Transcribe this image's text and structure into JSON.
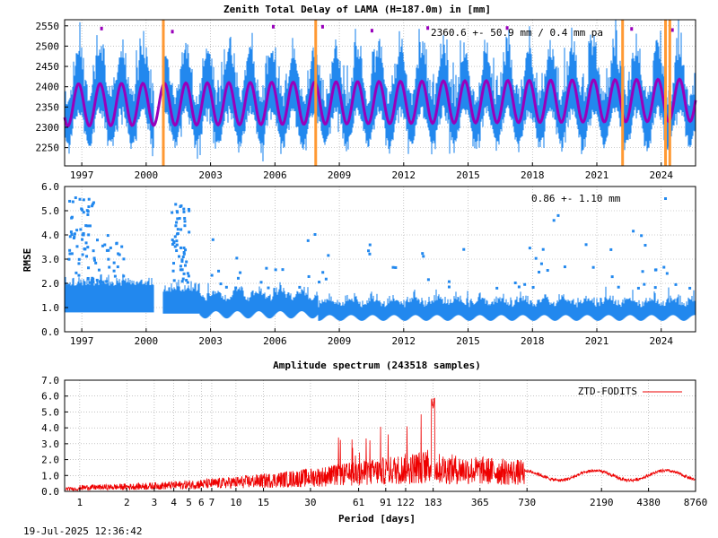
{
  "chart_data": [
    {
      "type": "scatter",
      "title": "Zenith Total Delay of LAMA (H=187.0m) in [mm]",
      "annotation": "2360.6 +-  50.9 mm /  0.4 mm pa",
      "x_ticks": [
        "1997",
        "2000",
        "2003",
        "2006",
        "2009",
        "2012",
        "2015",
        "2018",
        "2021",
        "2024"
      ],
      "x_range": [
        1996.2,
        2025.6
      ],
      "y_ticks": [
        "2250",
        "2300",
        "2350",
        "2400",
        "2450",
        "2500",
        "2550"
      ],
      "ylim": [
        2205,
        2565
      ],
      "mean": 2360.6,
      "std": 50.9,
      "trend_mm_per_year": 0.4,
      "seasonal_amplitude": 52,
      "vertical_markers": [
        2000.8,
        2007.9,
        2022.2,
        2024.2,
        2024.4
      ],
      "colors": {
        "data": "#2288ee",
        "fit": "#9900bb",
        "marker": "#ff9933"
      }
    },
    {
      "type": "scatter",
      "ylabel": "RMSE",
      "annotation": "0.86 +-  1.10 mm",
      "x_ticks": [
        "1997",
        "2000",
        "2003",
        "2006",
        "2009",
        "2012",
        "2015",
        "2018",
        "2021",
        "2024"
      ],
      "x_range": [
        1996.2,
        2025.6
      ],
      "y_ticks": [
        "0.0",
        "1.0",
        "2.0",
        "3.0",
        "4.0",
        "5.0",
        "6.0"
      ],
      "ylim": [
        0,
        6
      ],
      "colors": {
        "data": "#2288ee"
      }
    },
    {
      "type": "line",
      "title": "Amplitude spectrum (243518 samples)",
      "xlabel": "Period [days]",
      "legend": "ZTD-FODITS",
      "legend_position": "top-right",
      "x_scale": "log",
      "x_ticks": [
        "1",
        "2",
        "3",
        "4",
        "5",
        "6",
        "7",
        "10",
        "15",
        "30",
        "61",
        "91",
        "122",
        "183",
        "365",
        "730",
        "2190",
        "4380",
        "8760"
      ],
      "x_range": [
        0.8,
        8760
      ],
      "y_ticks": [
        "0.0",
        "1.0",
        "2.0",
        "3.0",
        "4.0",
        "5.0",
        "6.0",
        "7.0"
      ],
      "ylim": [
        0,
        7
      ],
      "peak": {
        "period_days": 183,
        "amplitude": 6.0
      },
      "colors": {
        "line": "#ee0000"
      }
    }
  ],
  "footer": {
    "timestamp": "19-Jul-2025 12:36:42"
  }
}
